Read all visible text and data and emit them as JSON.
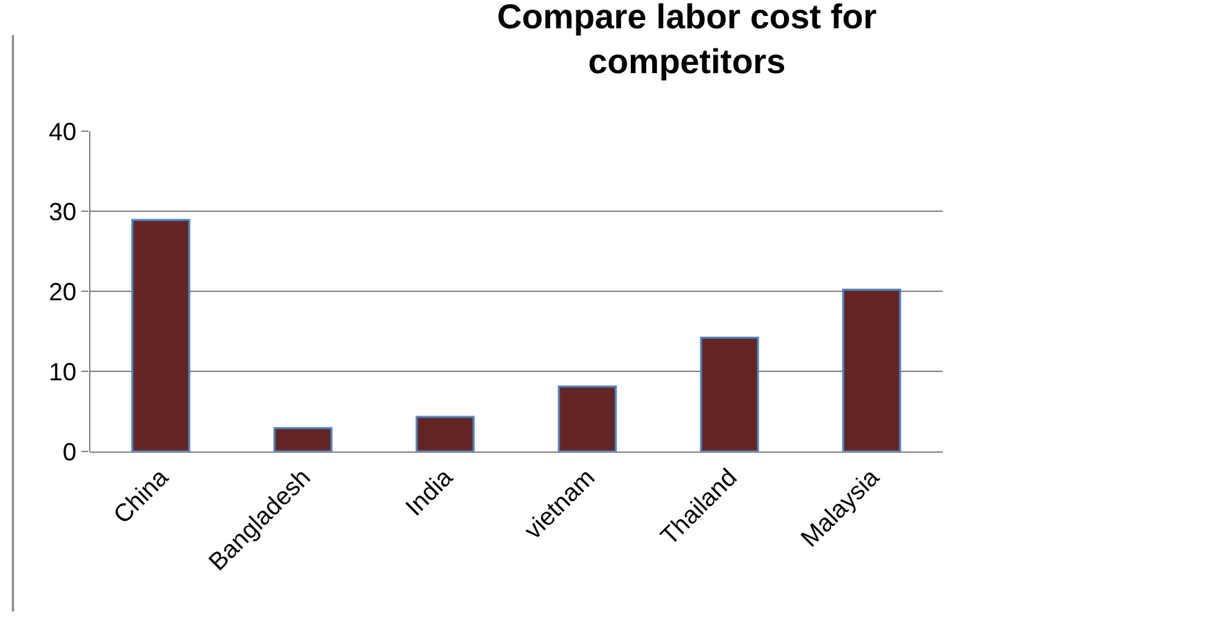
{
  "chart_data": {
    "type": "bar",
    "title": "Compare labor cost for competitors",
    "categories": [
      "China",
      "Bangladesh",
      "India",
      "vietnam",
      "Thailand",
      "Malaysia"
    ],
    "values": [
      28.9,
      2.9,
      4.3,
      8.1,
      14.2,
      20.2
    ],
    "color": "#632523",
    "ylim": [
      0,
      40
    ],
    "yticks": [
      0,
      10,
      20,
      30,
      40
    ],
    "grid": "y"
  }
}
